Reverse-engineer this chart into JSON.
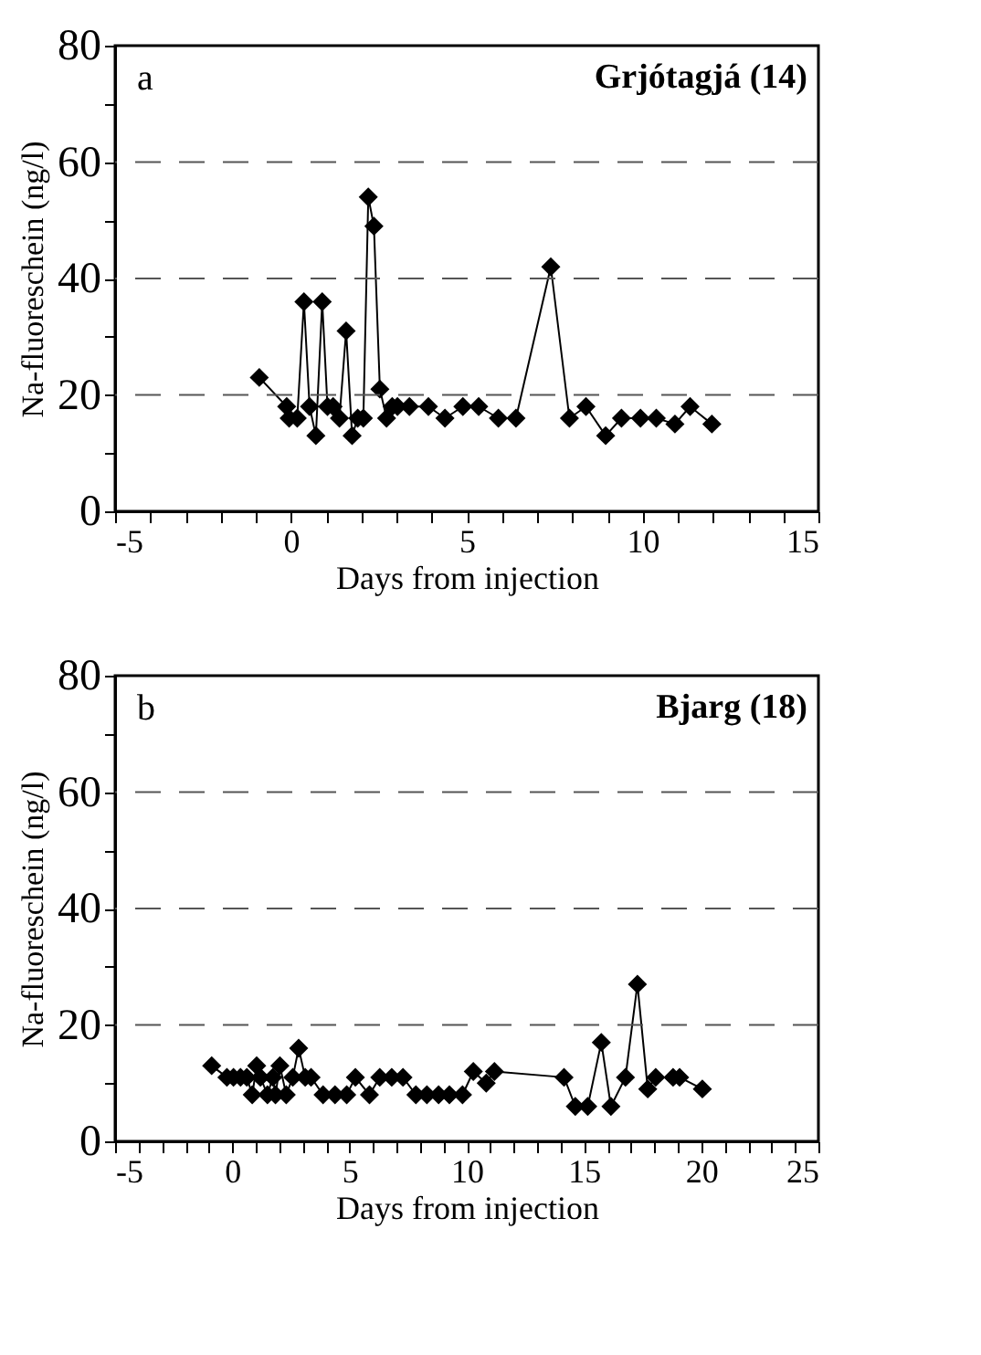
{
  "chart_data": [
    {
      "type": "line",
      "xlabel": "Days from injection",
      "ylabel": "Na-fluoreschein (ng/l)",
      "annotations": [
        "a",
        "Grjótagjá (14)"
      ],
      "marker": "diamond",
      "line_style": "solid",
      "grid": "y",
      "xlim": [
        -5,
        15
      ],
      "ylim": [
        0,
        80
      ],
      "xticks": [
        -5,
        {
          "value": -4,
          "label": null
        },
        {
          "value": -3,
          "label": null
        },
        {
          "value": -2,
          "label": null
        },
        {
          "value": -1,
          "label": null
        },
        0,
        {
          "value": 1,
          "label": null
        },
        {
          "value": 2,
          "label": null
        },
        {
          "value": 3,
          "label": null
        },
        {
          "value": 4,
          "label": null
        },
        5,
        {
          "value": 6,
          "label": null
        },
        {
          "value": 7,
          "label": null
        },
        {
          "value": 8,
          "label": null
        },
        {
          "value": 9,
          "label": null
        },
        10,
        {
          "value": 11,
          "label": null
        },
        {
          "value": 12,
          "label": null
        },
        {
          "value": 13,
          "label": null
        },
        {
          "value": 14,
          "label": null
        },
        15
      ],
      "yticks": [
        0,
        {
          "value": 10,
          "label": null
        },
        20,
        {
          "value": 30,
          "label": null
        },
        40,
        {
          "value": 50,
          "label": null
        },
        60,
        {
          "value": 70,
          "label": null
        },
        80
      ],
      "x": [
        -0.9,
        -0.12,
        -0.05,
        0.18,
        0.37,
        0.53,
        0.71,
        0.89,
        1.04,
        1.2,
        1.38,
        1.57,
        1.74,
        1.9,
        2.06,
        2.2,
        2.36,
        2.53,
        2.72,
        2.88,
        3.03,
        3.37,
        3.91,
        4.38,
        4.89,
        5.34,
        5.9,
        6.4,
        7.39,
        7.92,
        8.39,
        8.95,
        9.4,
        9.94,
        10.39,
        10.92,
        11.35,
        11.97
      ],
      "series": [
        {
          "color": "#000000",
          "values": [
            23,
            18,
            16,
            16,
            36,
            18,
            13,
            36,
            18,
            18,
            16,
            31,
            13,
            16,
            16,
            54,
            49,
            21,
            16,
            18,
            18,
            18,
            18,
            16,
            18,
            18,
            16,
            16,
            42,
            16,
            18,
            13,
            16,
            16,
            16,
            15,
            18,
            15
          ]
        }
      ]
    },
    {
      "type": "line",
      "xlabel": "Days from injection",
      "ylabel": "Na-fluoreschein (ng/l)",
      "annotations": [
        "b",
        "Bjarg (18)"
      ],
      "marker": "diamond",
      "line_style": "solid",
      "grid": "y",
      "xlim": [
        -5,
        25
      ],
      "ylim": [
        0,
        80
      ],
      "xticks": [
        -5,
        {
          "value": -4,
          "label": null
        },
        {
          "value": -3,
          "label": null
        },
        {
          "value": -2,
          "label": null
        },
        {
          "value": -1,
          "label": null
        },
        0,
        {
          "value": 1,
          "label": null
        },
        {
          "value": 2,
          "label": null
        },
        {
          "value": 3,
          "label": null
        },
        {
          "value": 4,
          "label": null
        },
        5,
        {
          "value": 6,
          "label": null
        },
        {
          "value": 7,
          "label": null
        },
        {
          "value": 8,
          "label": null
        },
        {
          "value": 9,
          "label": null
        },
        10,
        {
          "value": 11,
          "label": null
        },
        {
          "value": 12,
          "label": null
        },
        {
          "value": 13,
          "label": null
        },
        {
          "value": 14,
          "label": null
        },
        15,
        {
          "value": 16,
          "label": null
        },
        {
          "value": 17,
          "label": null
        },
        {
          "value": 18,
          "label": null
        },
        {
          "value": 19,
          "label": null
        },
        20,
        {
          "value": 21,
          "label": null
        },
        {
          "value": 22,
          "label": null
        },
        {
          "value": 23,
          "label": null
        },
        {
          "value": 24,
          "label": null
        },
        25
      ],
      "yticks": [
        0,
        {
          "value": 10,
          "label": null
        },
        20,
        {
          "value": 30,
          "label": null
        },
        40,
        {
          "value": 50,
          "label": null
        },
        60,
        {
          "value": 70,
          "label": null
        },
        80
      ],
      "x": [
        -0.88,
        -0.23,
        0.05,
        0.35,
        0.62,
        0.85,
        1.04,
        1.2,
        1.5,
        1.73,
        1.84,
        2.03,
        2.3,
        2.58,
        2.83,
        3.11,
        3.36,
        3.87,
        4.38,
        4.88,
        5.25,
        5.85,
        6.29,
        6.8,
        7.28,
        7.83,
        8.3,
        8.8,
        9.26,
        9.82,
        10.28,
        10.83,
        11.18,
        14.15,
        14.63,
        15.16,
        15.74,
        16.15,
        16.77,
        17.28,
        17.72,
        18.06,
        18.8,
        19.08,
        20.05
      ],
      "series": [
        {
          "color": "#000000",
          "values": [
            13,
            11,
            11,
            11,
            11,
            8,
            13,
            11,
            8,
            11,
            8,
            13,
            8,
            11,
            16,
            11,
            11,
            8,
            8,
            8,
            11,
            8,
            11,
            11,
            11,
            8,
            8,
            8,
            8,
            8,
            12,
            10,
            12,
            11,
            6,
            6,
            17,
            6,
            11,
            27,
            9,
            11,
            11,
            11,
            9
          ]
        }
      ]
    }
  ]
}
